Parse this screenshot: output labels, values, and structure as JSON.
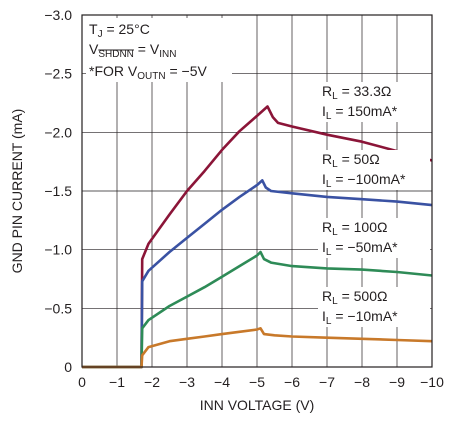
{
  "chart_data": {
    "type": "line",
    "xlabel": "INN VOLTAGE (V)",
    "ylabel": "GND PIN CURRENT (mA)",
    "xlim": [
      0,
      -10
    ],
    "ylim": [
      0,
      -3.0
    ],
    "x_ticks": [
      "0",
      "−1",
      "−2",
      "−3",
      "−4",
      "−5",
      "−6",
      "−7",
      "−8",
      "−9",
      "−10"
    ],
    "y_ticks": [
      "0",
      "−0.5",
      "−1.0",
      "−1.5",
      "−2.0",
      "−2.5",
      "−3.0"
    ],
    "grid": true,
    "conditions": [
      {
        "pre": "T",
        "sub": "J",
        "post": " = 25°C"
      },
      {
        "pre": "V",
        "sub": "SHDNN",
        "post": " = V",
        "sub2": "INN"
      },
      {
        "pre": "*FOR V",
        "sub": "OUTN",
        "post": " = −5V"
      }
    ],
    "series": [
      {
        "color": "#8b1538",
        "label_rl": "R",
        "label_rl_sub": "L",
        "label_rl_val": " = 33.3Ω",
        "label_il": "I",
        "label_il_sub": "L",
        "label_il_val": " = 150mA*",
        "points": [
          [
            0,
            0
          ],
          [
            -1.7,
            0
          ],
          [
            -1.72,
            -0.92
          ],
          [
            -1.9,
            -1.05
          ],
          [
            -2.5,
            -1.3
          ],
          [
            -3.0,
            -1.5
          ],
          [
            -3.5,
            -1.67
          ],
          [
            -4.0,
            -1.85
          ],
          [
            -4.5,
            -2.01
          ],
          [
            -5.0,
            -2.14
          ],
          [
            -5.3,
            -2.22
          ],
          [
            -5.45,
            -2.13
          ],
          [
            -5.6,
            -2.08
          ],
          [
            -6.0,
            -2.05
          ],
          [
            -7.0,
            -1.98
          ],
          [
            -8.0,
            -1.92
          ],
          [
            -9.0,
            -1.84
          ],
          [
            -10.0,
            -1.76
          ]
        ]
      },
      {
        "color": "#3a52a3",
        "label_rl": "R",
        "label_rl_sub": "L",
        "label_rl_val": " = 50Ω",
        "label_il": "I",
        "label_il_sub": "L",
        "label_il_val": " = −100mA*",
        "points": [
          [
            0,
            0
          ],
          [
            -1.7,
            0
          ],
          [
            -1.72,
            -0.73
          ],
          [
            -1.9,
            -0.82
          ],
          [
            -2.5,
            -0.98
          ],
          [
            -3.0,
            -1.1
          ],
          [
            -3.5,
            -1.22
          ],
          [
            -4.0,
            -1.34
          ],
          [
            -4.5,
            -1.45
          ],
          [
            -5.0,
            -1.55
          ],
          [
            -5.15,
            -1.59
          ],
          [
            -5.25,
            -1.53
          ],
          [
            -5.4,
            -1.5
          ],
          [
            -6.0,
            -1.48
          ],
          [
            -7.0,
            -1.45
          ],
          [
            -8.0,
            -1.43
          ],
          [
            -9.0,
            -1.41
          ],
          [
            -10.0,
            -1.38
          ]
        ]
      },
      {
        "color": "#2e8b57",
        "label_rl": "R",
        "label_rl_sub": "L",
        "label_rl_val": " = 100Ω",
        "label_il": "I",
        "label_il_sub": "L",
        "label_il_val": " = −50mA*",
        "points": [
          [
            0,
            0
          ],
          [
            -1.7,
            0
          ],
          [
            -1.72,
            -0.33
          ],
          [
            -1.9,
            -0.4
          ],
          [
            -2.5,
            -0.52
          ],
          [
            -3.0,
            -0.6
          ],
          [
            -3.5,
            -0.68
          ],
          [
            -4.0,
            -0.77
          ],
          [
            -4.5,
            -0.86
          ],
          [
            -5.0,
            -0.95
          ],
          [
            -5.1,
            -0.98
          ],
          [
            -5.2,
            -0.92
          ],
          [
            -5.4,
            -0.89
          ],
          [
            -6.0,
            -0.86
          ],
          [
            -7.0,
            -0.84
          ],
          [
            -8.0,
            -0.83
          ],
          [
            -9.0,
            -0.81
          ],
          [
            -10.0,
            -0.78
          ]
        ]
      },
      {
        "color": "#c8792a",
        "label_rl": "R",
        "label_rl_sub": "L",
        "label_rl_val": " = 500Ω",
        "label_il": "I",
        "label_il_sub": "L",
        "label_il_val": " = −10mA*",
        "points": [
          [
            0,
            0
          ],
          [
            -1.7,
            0
          ],
          [
            -1.72,
            -0.1
          ],
          [
            -1.9,
            -0.17
          ],
          [
            -2.5,
            -0.22
          ],
          [
            -3.0,
            -0.24
          ],
          [
            -3.5,
            -0.26
          ],
          [
            -4.0,
            -0.28
          ],
          [
            -4.5,
            -0.3
          ],
          [
            -5.0,
            -0.32
          ],
          [
            -5.1,
            -0.33
          ],
          [
            -5.2,
            -0.28
          ],
          [
            -5.5,
            -0.27
          ],
          [
            -6.0,
            -0.26
          ],
          [
            -7.0,
            -0.25
          ],
          [
            -8.0,
            -0.24
          ],
          [
            -9.0,
            -0.23
          ],
          [
            -10.0,
            -0.22
          ]
        ]
      }
    ]
  }
}
